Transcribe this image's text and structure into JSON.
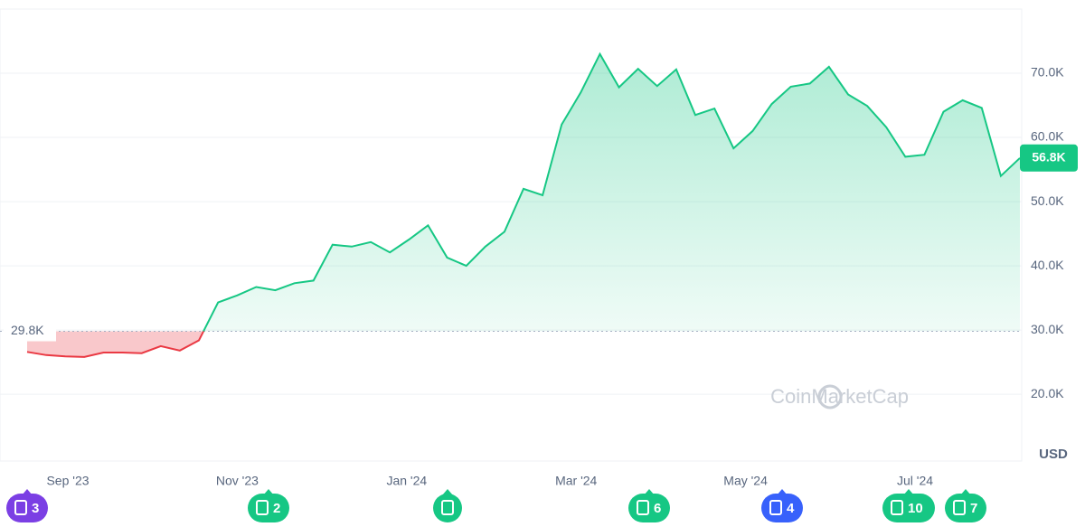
{
  "chart_data": {
    "type": "line",
    "baseline": 29800,
    "baseline_label": "29.8K",
    "current_label": "56.8K",
    "currency": "USD",
    "watermark": "CoinMarketCap",
    "up_color": "#16c784",
    "down_color": "#ea3943",
    "grid": true,
    "ylim": [
      9600,
      80000
    ],
    "yticks": [
      {
        "value": 20000,
        "label": "20.0K"
      },
      {
        "value": 30000,
        "label": "30.0K"
      },
      {
        "value": 40000,
        "label": "40.0K"
      },
      {
        "value": 50000,
        "label": "50.0K"
      },
      {
        "value": 60000,
        "label": "60.0K"
      },
      {
        "value": 70000,
        "label": "70.0K"
      }
    ],
    "x_labels": [
      "Sep '23",
      "Nov '23",
      "Jan '24",
      "Mar '24",
      "May '24",
      "Jul '24"
    ],
    "values": [
      26600,
      26100,
      25900,
      25800,
      26500,
      26500,
      26400,
      27500,
      26800,
      28400,
      34300,
      35400,
      36700,
      36200,
      37300,
      37700,
      43300,
      43000,
      43700,
      42100,
      44100,
      46300,
      41300,
      40000,
      43000,
      45300,
      52000,
      51000,
      62000,
      67000,
      73000,
      67800,
      70700,
      68000,
      70600,
      63500,
      64500,
      58300,
      61000,
      65200,
      67900,
      68400,
      71000,
      66700,
      64900,
      61600,
      57000,
      57300,
      64000,
      65800,
      64600,
      54000,
      56800
    ],
    "events": [
      {
        "count": 3,
        "color": "#7b3fe4"
      },
      {
        "count": 2,
        "color": "#16c784"
      },
      {
        "count": 6,
        "color": "#16c784"
      },
      {
        "count": 4,
        "color": "#3861fb"
      },
      {
        "count": 10,
        "color": "#16c784"
      },
      {
        "count": 7,
        "color": "#16c784"
      }
    ]
  }
}
